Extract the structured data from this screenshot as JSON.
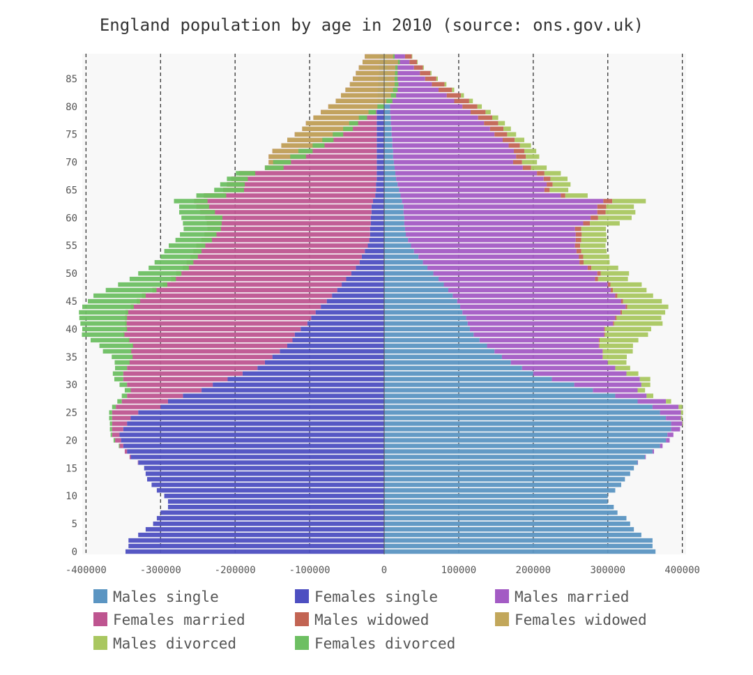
{
  "chart_data": {
    "type": "bar",
    "orientation": "horizontal-stacked-pyramid",
    "title": "England population by age in 2010 (source: ons.gov.uk)",
    "xlabel": "",
    "ylabel": "",
    "xlim": [
      -405000,
      405000
    ],
    "ylim": [
      -0.5,
      89.5
    ],
    "x_ticks": [
      -400000,
      -300000,
      -200000,
      -100000,
      0,
      100000,
      200000,
      300000,
      400000
    ],
    "x_tick_labels": [
      "-400000",
      "-300000",
      "-200000",
      "-100000",
      "0",
      "100000",
      "200000",
      "300000",
      "400000"
    ],
    "y_ticks": [
      0,
      5,
      10,
      15,
      20,
      25,
      30,
      35,
      40,
      45,
      50,
      55,
      60,
      65,
      70,
      75,
      80,
      85
    ],
    "y_tick_labels": [
      "0",
      "5",
      "10",
      "15",
      "20",
      "25",
      "30",
      "35",
      "40",
      "45",
      "50",
      "55",
      "60",
      "65",
      "70",
      "75",
      "80",
      "85"
    ],
    "grid": "vertical dashed at x ticks",
    "legend_position": "bottom",
    "ages": [
      0,
      1,
      2,
      3,
      4,
      5,
      6,
      7,
      8,
      9,
      10,
      11,
      12,
      13,
      14,
      15,
      16,
      17,
      18,
      19,
      20,
      21,
      22,
      23,
      24,
      25,
      26,
      27,
      28,
      29,
      30,
      31,
      32,
      33,
      34,
      35,
      36,
      37,
      38,
      39,
      40,
      41,
      42,
      43,
      44,
      45,
      46,
      47,
      48,
      49,
      50,
      51,
      52,
      53,
      54,
      55,
      56,
      57,
      58,
      59,
      60,
      61,
      62,
      63,
      64,
      65,
      66,
      67,
      68,
      69,
      70,
      71,
      72,
      73,
      74,
      75,
      76,
      77,
      78,
      79,
      80,
      81,
      82,
      83,
      84,
      85,
      86,
      87,
      88,
      89
    ],
    "series": [
      {
        "name": "Males single",
        "side": "right",
        "color": "#5b95c2",
        "values": [
          364000,
          360000,
          360000,
          345000,
          335000,
          330000,
          325000,
          313000,
          308000,
          300000,
          300000,
          310000,
          318000,
          323000,
          330000,
          335000,
          340000,
          350000,
          360000,
          370000,
          378000,
          380000,
          385000,
          385000,
          378000,
          370000,
          360000,
          340000,
          310000,
          280000,
          255000,
          225000,
          200000,
          185000,
          170000,
          158000,
          148000,
          138000,
          128000,
          120000,
          115000,
          112000,
          110000,
          105000,
          102000,
          98000,
          92000,
          86000,
          80000,
          73000,
          66000,
          58000,
          52000,
          46000,
          40000,
          36000,
          32000,
          29000,
          28000,
          27000,
          27000,
          26000,
          26000,
          24000,
          22000,
          20000,
          18000,
          16000,
          15000,
          14000,
          13000,
          12000,
          12000,
          11000,
          11000,
          10000,
          10000,
          9000,
          9000,
          8000,
          8000,
          7000,
          7000,
          6000,
          6000,
          5000,
          5000,
          4000,
          4000,
          3000
        ]
      },
      {
        "name": "Males married",
        "side": "right",
        "color": "#a35bc4",
        "values": [
          0,
          0,
          0,
          0,
          0,
          0,
          0,
          0,
          0,
          0,
          0,
          0,
          0,
          0,
          0,
          0,
          500,
          1000,
          2000,
          3500,
          5000,
          8000,
          12000,
          15000,
          20000,
          28000,
          35000,
          38000,
          42000,
          60000,
          90000,
          118000,
          125000,
          125000,
          130000,
          135000,
          145000,
          150000,
          160000,
          175000,
          180000,
          195000,
          200000,
          212000,
          222000,
          220000,
          218000,
          218000,
          220000,
          210000,
          220000,
          215000,
          210000,
          215000,
          218000,
          220000,
          225000,
          228000,
          228000,
          240000,
          250000,
          260000,
          260000,
          270000,
          215000,
          195000,
          200000,
          198000,
          190000,
          172000,
          160000,
          165000,
          162000,
          156000,
          148000,
          138000,
          132000,
          125000,
          117000,
          108000,
          97000,
          87000,
          77000,
          67000,
          58000,
          50000,
          43000,
          36000,
          30000,
          25000
        ]
      },
      {
        "name": "Males widowed",
        "side": "right",
        "color": "#c26453",
        "values": [
          0,
          0,
          0,
          0,
          0,
          0,
          0,
          0,
          0,
          0,
          0,
          0,
          0,
          0,
          0,
          0,
          0,
          0,
          0,
          0,
          0,
          0,
          0,
          0,
          0,
          0,
          0,
          0,
          0,
          0,
          0,
          0,
          0,
          0,
          0,
          500,
          500,
          800,
          1000,
          1000,
          1200,
          1500,
          1800,
          2000,
          2200,
          2500,
          2800,
          3000,
          3500,
          4000,
          4500,
          5000,
          5500,
          6000,
          6500,
          7000,
          7500,
          8000,
          8500,
          9000,
          10000,
          11000,
          12000,
          12000,
          6000,
          7000,
          8000,
          9000,
          10000,
          11000,
          12000,
          13000,
          14000,
          15000,
          16000,
          17000,
          18000,
          19000,
          19000,
          20000,
          20000,
          20000,
          19000,
          18000,
          17000,
          15000,
          14000,
          12000,
          10000,
          9000
        ]
      },
      {
        "name": "Males divorced",
        "side": "right",
        "color": "#a9c760",
        "values": [
          0,
          0,
          0,
          0,
          0,
          0,
          0,
          0,
          0,
          0,
          0,
          0,
          0,
          0,
          0,
          0,
          0,
          0,
          0,
          0,
          0,
          0,
          0,
          1000,
          2000,
          3000,
          5000,
          7000,
          9000,
          10000,
          12000,
          14000,
          16000,
          20000,
          25000,
          32000,
          40000,
          45000,
          52000,
          58000,
          62000,
          65000,
          60000,
          58000,
          55000,
          52000,
          48000,
          45000,
          42000,
          40000,
          38000,
          36000,
          35000,
          35000,
          34000,
          34000,
          34000,
          33000,
          33000,
          40000,
          45000,
          40000,
          37000,
          45000,
          30000,
          25000,
          24000,
          23000,
          22000,
          21000,
          20000,
          18000,
          16000,
          15000,
          13000,
          12000,
          10000,
          9000,
          8000,
          7000,
          6000,
          5000,
          4000,
          3000,
          2500,
          2000,
          1500,
          1200,
          1000,
          800
        ]
      },
      {
        "name": "Females single",
        "side": "left",
        "color": "#4d4fc1",
        "values": [
          -347000,
          -343000,
          -343000,
          -330000,
          -320000,
          -310000,
          -305000,
          -300000,
          -290000,
          -290000,
          -295000,
          -305000,
          -312000,
          -318000,
          -320000,
          -322000,
          -330000,
          -340000,
          -345000,
          -350000,
          -353000,
          -355000,
          -350000,
          -345000,
          -340000,
          -330000,
          -300000,
          -290000,
          -270000,
          -245000,
          -230000,
          -210000,
          -190000,
          -170000,
          -160000,
          -150000,
          -140000,
          -130000,
          -123000,
          -120000,
          -112000,
          -103000,
          -98000,
          -92000,
          -85000,
          -77000,
          -70000,
          -63000,
          -57000,
          -51000,
          -44000,
          -38000,
          -33000,
          -30000,
          -26000,
          -22000,
          -20000,
          -19000,
          -19000,
          -18000,
          -18000,
          -17000,
          -17000,
          -15000,
          -12000,
          -11000,
          -11000,
          -10000,
          -10000,
          -10000,
          -10000,
          -10000,
          -10000,
          -10000,
          -10000,
          -10000,
          -10000,
          -10000,
          -10000,
          -10000,
          -10000,
          -9000,
          -9000,
          -9000,
          -8000,
          -8000,
          -7000,
          -7000,
          -6000,
          -6000
        ]
      },
      {
        "name": "Females married",
        "side": "left",
        "color": "#be5590",
        "values": [
          0,
          0,
          0,
          0,
          0,
          0,
          0,
          0,
          0,
          0,
          0,
          0,
          0,
          0,
          0,
          0,
          -500,
          -1500,
          -3000,
          -5000,
          -8000,
          -10000,
          -15000,
          -20000,
          -25000,
          -35000,
          -60000,
          -62000,
          -75000,
          -95000,
          -115000,
          -140000,
          -160000,
          -175000,
          -182000,
          -188000,
          -200000,
          -208000,
          -220000,
          -230000,
          -235000,
          -245000,
          -250000,
          -255000,
          -255000,
          -255000,
          -255000,
          -248000,
          -240000,
          -235000,
          -235000,
          -232000,
          -232000,
          -230000,
          -230000,
          -230000,
          -225000,
          -222000,
          -218000,
          -220000,
          -222000,
          -230000,
          -235000,
          -240000,
          -230000,
          -205000,
          -200000,
          -195000,
          -185000,
          -150000,
          -145000,
          -145000,
          -140000,
          -128000,
          -120000,
          -110000,
          -100000,
          -95000,
          -85000,
          -75000,
          -65000,
          -56000,
          -49000,
          -43000,
          -38000,
          -34000,
          -31000,
          -27000,
          -23000,
          -20000
        ]
      },
      {
        "name": "Females widowed",
        "side": "left",
        "color": "#c2a75b",
        "values": [
          0,
          0,
          0,
          0,
          0,
          0,
          0,
          0,
          0,
          0,
          0,
          0,
          0,
          0,
          0,
          0,
          0,
          0,
          0,
          0,
          0,
          0,
          0,
          0,
          0,
          0,
          0,
          0,
          0,
          0,
          0,
          0,
          0,
          0,
          500,
          500,
          700,
          1000,
          1200,
          1500,
          2000,
          2500,
          3000,
          3500,
          4000,
          4500,
          5000,
          5500,
          6000,
          6500,
          7000,
          8000,
          9000,
          10000,
          11000,
          12000,
          14000,
          16000,
          18000,
          20000,
          23000,
          20000,
          17000,
          18000,
          30000,
          28000,
          24000,
          22000,
          22000,
          25000,
          30000,
          50000,
          54000,
          58000,
          62000,
          65000,
          68000,
          70000,
          72000,
          74000,
          75000,
          76000,
          74000,
          70000,
          65000,
          60000,
          56000,
          52000,
          50000,
          40000
        ]
      },
      {
        "name": "Females divorced",
        "side": "left",
        "color": "#6dbf62",
        "values": [
          0,
          0,
          0,
          0,
          0,
          0,
          0,
          0,
          0,
          0,
          0,
          0,
          0,
          0,
          0,
          0,
          0,
          0,
          0,
          -1000,
          -2000,
          -2000,
          -3000,
          -3000,
          -4000,
          -4000,
          -5000,
          -6000,
          -7000,
          -8000,
          -10000,
          -12000,
          -14000,
          -16000,
          -20000,
          -28000,
          -38000,
          -45000,
          -52000,
          -57000,
          -60000,
          -62000,
          -64000,
          -66000,
          -69000,
          -70000,
          -70000,
          -68000,
          -66000,
          -62000,
          -58000,
          -54000,
          -52000,
          -50000,
          -50000,
          -49000,
          -49000,
          -49000,
          -50000,
          -52000,
          -55000,
          -48000,
          -40000,
          -45000,
          -40000,
          -40000,
          -33000,
          -28000,
          -26000,
          -25000,
          -24000,
          -21000,
          -19000,
          -16000,
          -15000,
          -14000,
          -13000,
          -12000,
          -11000,
          -10000,
          -9000,
          -8000,
          -7000,
          -6000,
          -5000,
          -4000,
          -3500,
          -3000,
          -2500,
          -2000
        ]
      }
    ],
    "legend_order": [
      "Males single",
      "Females single",
      "Males married",
      "Females married",
      "Males widowed",
      "Females widowed",
      "Males divorced",
      "Females divorced"
    ]
  }
}
